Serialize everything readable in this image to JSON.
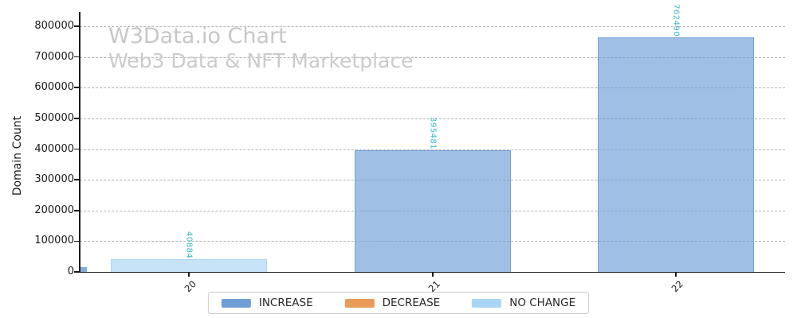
{
  "watermark": {
    "line1": "W3Data.io Chart",
    "line2": "Web3 Data & NFT Marketplace"
  },
  "chart_data": {
    "type": "bar",
    "categories": [
      "20",
      "21",
      "22"
    ],
    "values": [
      40884,
      395481,
      762490
    ],
    "value_labels": [
      "40884",
      "395481",
      "762490"
    ],
    "bar_status": [
      "NO CHANGE",
      "INCREASE",
      "INCREASE"
    ],
    "title": "",
    "xlabel": "",
    "ylabel": "Domain Count",
    "ylim": [
      0,
      840000
    ],
    "ytick_labels": [
      "0",
      "100000",
      "200000",
      "300000",
      "400000",
      "500000",
      "600000",
      "700000",
      "800000"
    ],
    "ytick_step": 100000,
    "grid": "horizontal dashed",
    "legend_position": "bottom center",
    "legend": [
      {
        "label": "INCREASE",
        "color": "#6d9fd6"
      },
      {
        "label": "DECREASE",
        "color": "#eb9b58"
      },
      {
        "label": "NO CHANGE",
        "color": "#a9d4f5"
      }
    ],
    "clipped_partial_bar": {
      "status": "INCREASE"
    }
  },
  "colors": {
    "value_label": "#35b7c5",
    "watermark": "#c8c8c8",
    "grid": "#b3b3b3",
    "axis": "#1a1a1a"
  }
}
